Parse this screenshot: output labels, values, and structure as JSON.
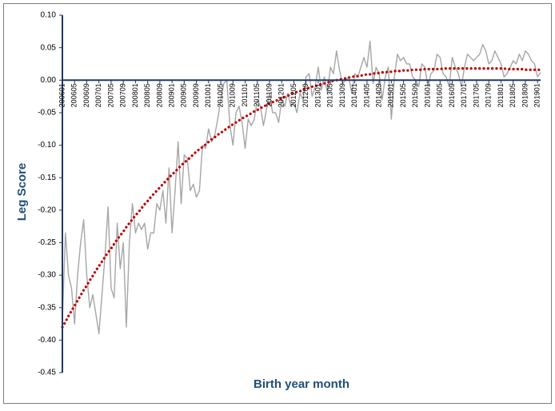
{
  "chart_data": {
    "type": "line",
    "y_label": "Leg Score",
    "x_label": "Birth year month",
    "ylim": [
      -0.45,
      0.1
    ],
    "yticks": [
      {
        "value": 0.1,
        "label": "0.10"
      },
      {
        "value": 0.05,
        "label": "0.05"
      },
      {
        "value": 0,
        "label": "0.00"
      },
      {
        "value": -0.05,
        "label": "-0.05"
      },
      {
        "value": -0.1,
        "label": "-0.10"
      },
      {
        "value": -0.15,
        "label": "-0.15"
      },
      {
        "value": -0.2,
        "label": "-0.20"
      },
      {
        "value": -0.25,
        "label": "-0.25"
      },
      {
        "value": -0.3,
        "label": "-0.30"
      },
      {
        "value": -0.35,
        "label": "-0.35"
      },
      {
        "value": -0.4,
        "label": "-0.40"
      },
      {
        "value": -0.45,
        "label": "-0.45"
      }
    ],
    "categories": [
      "200601",
      null,
      null,
      null,
      "200605",
      null,
      null,
      null,
      "200609",
      null,
      null,
      null,
      "200701",
      null,
      null,
      null,
      "200705",
      null,
      null,
      null,
      "200709",
      null,
      null,
      null,
      "200801",
      null,
      null,
      null,
      "200805",
      null,
      null,
      null,
      "200809",
      null,
      null,
      null,
      "200901",
      null,
      null,
      null,
      "200905",
      null,
      null,
      null,
      "200909",
      null,
      null,
      null,
      "201001",
      null,
      null,
      null,
      "201005",
      null,
      null,
      null,
      "201009",
      null,
      null,
      null,
      "201101",
      null,
      null,
      null,
      "201105",
      null,
      null,
      null,
      "201109",
      null,
      null,
      null,
      "201201",
      null,
      null,
      null,
      "201205",
      null,
      null,
      null,
      "201209",
      null,
      null,
      null,
      "201301",
      null,
      null,
      null,
      "201305",
      null,
      null,
      null,
      "201309",
      null,
      null,
      null,
      "201401",
      null,
      null,
      null,
      "201405",
      null,
      null,
      null,
      "201409",
      null,
      null,
      null,
      "201501",
      null,
      null,
      null,
      "201505",
      null,
      null,
      null,
      "201509",
      null,
      null,
      null,
      "201601",
      null,
      null,
      null,
      "201605",
      null,
      null,
      null,
      "201609",
      null,
      null,
      null,
      "201701",
      null,
      null,
      null,
      "201705",
      null,
      null,
      null,
      "201709",
      null,
      null,
      null,
      "201801",
      null,
      null,
      null,
      "201805",
      null,
      null,
      null,
      "201809",
      null,
      null,
      null,
      "201901",
      null
    ],
    "series": [
      {
        "color": "#a6a6a6",
        "style": "solid",
        "values": [
          -0.37,
          -0.235,
          -0.3,
          -0.32,
          -0.375,
          -0.3,
          -0.25,
          -0.215,
          -0.3,
          -0.35,
          -0.33,
          -0.36,
          -0.39,
          -0.33,
          -0.27,
          -0.195,
          -0.32,
          -0.335,
          -0.22,
          -0.29,
          -0.25,
          -0.38,
          -0.25,
          -0.19,
          -0.235,
          -0.22,
          -0.23,
          -0.22,
          -0.26,
          -0.235,
          -0.235,
          -0.19,
          -0.2,
          -0.17,
          -0.22,
          -0.135,
          -0.235,
          -0.17,
          -0.095,
          -0.19,
          -0.115,
          -0.12,
          -0.17,
          -0.16,
          -0.18,
          -0.17,
          -0.1,
          -0.105,
          -0.075,
          -0.095,
          -0.085,
          -0.06,
          -0.03,
          -0.005,
          0.0,
          -0.07,
          -0.1,
          -0.05,
          -0.04,
          -0.065,
          -0.105,
          -0.06,
          -0.07,
          -0.06,
          -0.03,
          -0.04,
          -0.07,
          -0.045,
          -0.02,
          -0.05,
          -0.05,
          -0.065,
          -0.03,
          -0.04,
          -0.02,
          -0.04,
          -0.035,
          -0.05,
          -0.02,
          -0.03,
          0.005,
          0.01,
          -0.025,
          -0.01,
          0.02,
          -0.015,
          0.005,
          -0.02,
          0.02,
          0.01,
          0.045,
          0.015,
          -0.005,
          0.0,
          0.005,
          -0.02,
          0.01,
          0.005,
          0.02,
          0.035,
          0.02,
          0.06,
          -0.005,
          0.02,
          0.01,
          -0.03,
          0.005,
          0.02,
          -0.06,
          0.005,
          0.04,
          0.03,
          0.035,
          0.025,
          0.025,
          0.005,
          0.0,
          -0.01,
          0.025,
          0.02,
          -0.01,
          0.01,
          0.015,
          0.04,
          0.035,
          0.01,
          0.005,
          -0.01,
          0.035,
          0.02,
          0.01,
          -0.01,
          0.02,
          0.04,
          0.035,
          0.03,
          0.035,
          0.04,
          0.055,
          0.045,
          0.025,
          0.03,
          0.045,
          0.035,
          0.025,
          0.005,
          0.01,
          0.02,
          0.03,
          0.025,
          0.04,
          0.03,
          0.045,
          0.04,
          0.03,
          0.025,
          0.005,
          0.012
        ]
      },
      {
        "color": "#c00000",
        "style": "dotted",
        "values": [
          -0.38,
          -0.372,
          -0.363,
          -0.355,
          -0.347,
          -0.339,
          -0.331,
          -0.323,
          -0.316,
          -0.308,
          -0.301,
          -0.293,
          -0.286,
          -0.279,
          -0.272,
          -0.265,
          -0.259,
          -0.252,
          -0.245,
          -0.239,
          -0.233,
          -0.226,
          -0.22,
          -0.214,
          -0.208,
          -0.203,
          -0.197,
          -0.191,
          -0.186,
          -0.18,
          -0.175,
          -0.17,
          -0.165,
          -0.16,
          -0.155,
          -0.15,
          -0.145,
          -0.141,
          -0.136,
          -0.131,
          -0.127,
          -0.123,
          -0.119,
          -0.114,
          -0.11,
          -0.106,
          -0.103,
          -0.099,
          -0.095,
          -0.091,
          -0.088,
          -0.084,
          -0.081,
          -0.078,
          -0.074,
          -0.071,
          -0.068,
          -0.065,
          -0.062,
          -0.059,
          -0.056,
          -0.054,
          -0.051,
          -0.048,
          -0.046,
          -0.043,
          -0.041,
          -0.038,
          -0.036,
          -0.034,
          -0.032,
          -0.03,
          -0.028,
          -0.026,
          -0.024,
          -0.022,
          -0.02,
          -0.018,
          -0.017,
          -0.015,
          -0.013,
          -0.012,
          -0.01,
          -0.009,
          -0.008,
          -0.006,
          -0.005,
          -0.004,
          -0.002,
          -0.001,
          0.0,
          0.001,
          0.002,
          0.003,
          0.004,
          0.005,
          0.006,
          0.006,
          0.007,
          0.008,
          0.009,
          0.009,
          0.01,
          0.011,
          0.011,
          0.012,
          0.012,
          0.013,
          0.013,
          0.014,
          0.014,
          0.014,
          0.015,
          0.015,
          0.015,
          0.016,
          0.016,
          0.016,
          0.016,
          0.017,
          0.017,
          0.017,
          0.017,
          0.017,
          0.017,
          0.018,
          0.018,
          0.018,
          0.018,
          0.018,
          0.018,
          0.018,
          0.018,
          0.018,
          0.018,
          0.018,
          0.018,
          0.018,
          0.018,
          0.018,
          0.018,
          0.018,
          0.018,
          0.018,
          0.018,
          0.018,
          0.017,
          0.017,
          0.017,
          0.017,
          0.017,
          0.017,
          0.016,
          0.016,
          0.016,
          0.016,
          0.016,
          0.016
        ]
      }
    ]
  }
}
